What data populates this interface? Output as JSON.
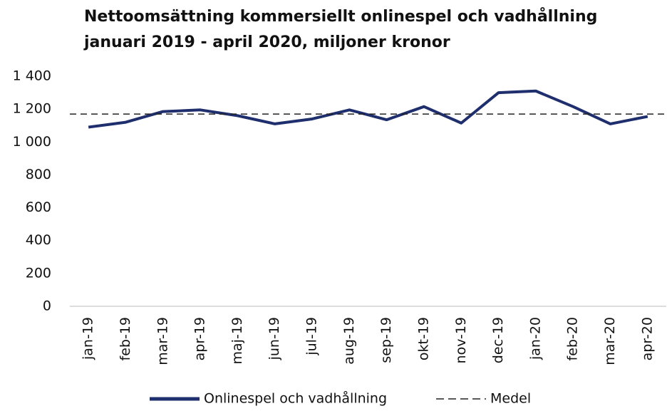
{
  "chart_data": {
    "type": "line",
    "title": "Nettoomsättning kommersiellt onlinespel och vadhållning",
    "subtitle": "januari 2019 - april 2020, miljoner kronor",
    "categories": [
      "jan-19",
      "feb-19",
      "mar-19",
      "apr-19",
      "maj-19",
      "jun-19",
      "jul-19",
      "aug-19",
      "sep-19",
      "okt-19",
      "nov-19",
      "dec-19",
      "jan-20",
      "feb-20",
      "mar-20",
      "apr-20"
    ],
    "series": [
      {
        "name": "Onlinespel och vadhållning",
        "color": "#1f2f6e",
        "values": [
          1090,
          1120,
          1185,
          1195,
          1160,
          1110,
          1140,
          1195,
          1135,
          1215,
          1115,
          1300,
          1310,
          1215,
          1110,
          1155
        ]
      },
      {
        "name": "Medel",
        "color": "#222222",
        "dashed": true,
        "values": [
          1170,
          1170,
          1170,
          1170,
          1170,
          1170,
          1170,
          1170,
          1170,
          1170,
          1170,
          1170,
          1170,
          1170,
          1170,
          1170
        ]
      }
    ],
    "ylim": [
      0,
      1400
    ],
    "yticks": [
      0,
      200,
      400,
      600,
      800,
      {
        "value": 1000,
        "label": "1 000"
      },
      {
        "value": 1200,
        "label": "1 200"
      },
      {
        "value": 1400,
        "label": "1 400"
      }
    ],
    "grid": false,
    "legend": "bottom"
  }
}
